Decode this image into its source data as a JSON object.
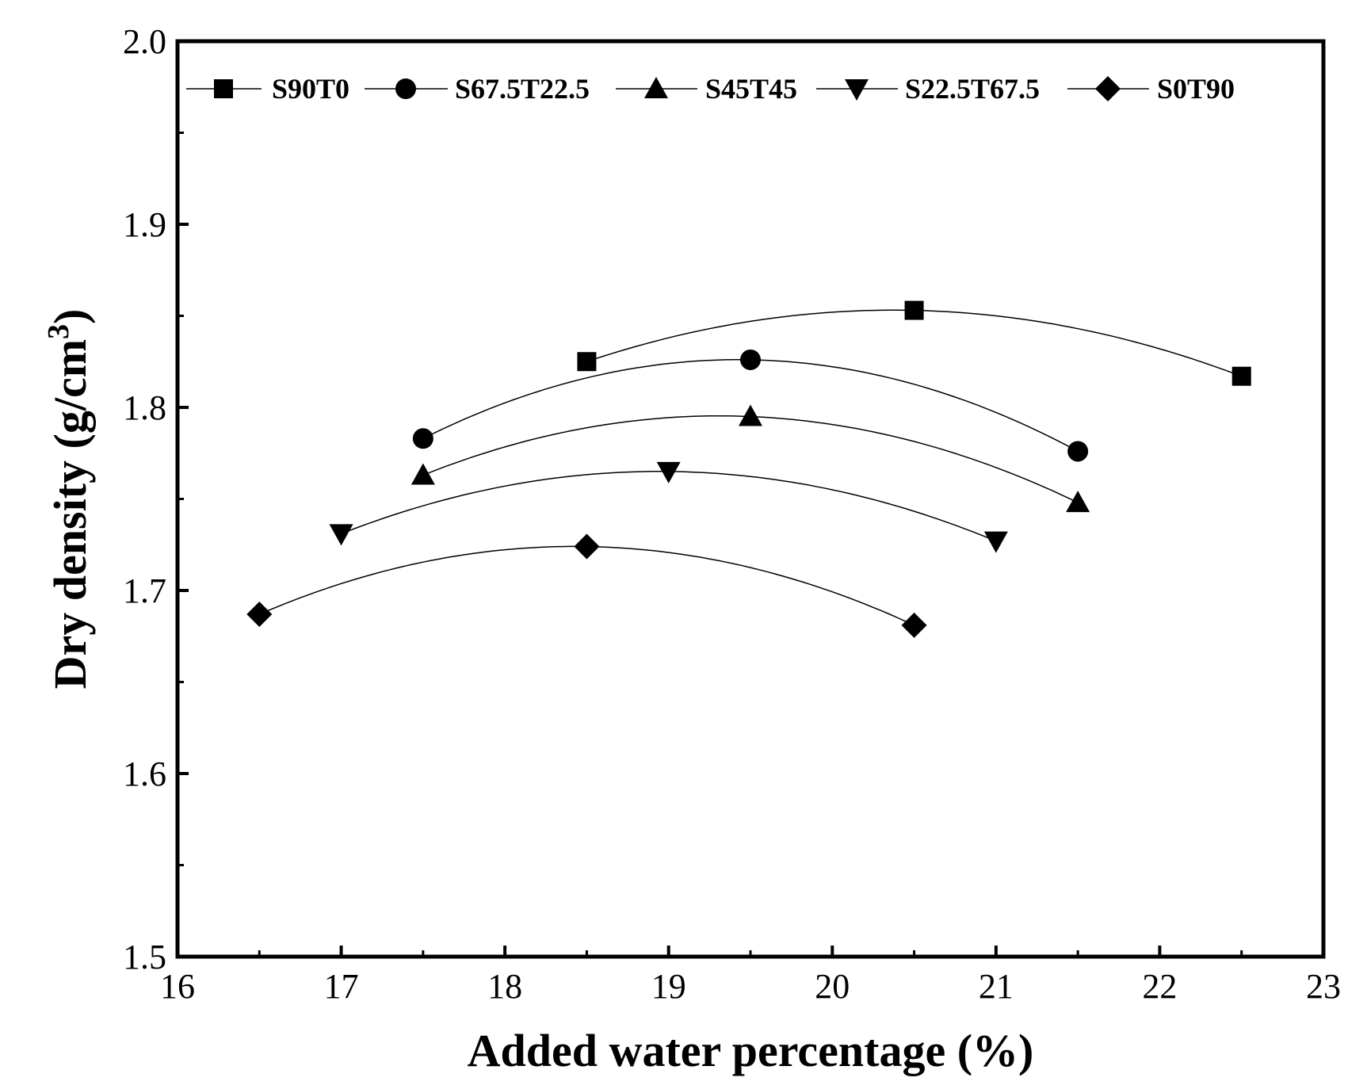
{
  "chart_data": {
    "type": "line",
    "title": "",
    "xlabel": "Added water percentage (%)",
    "ylabel_main": "Dry density (g/cm",
    "ylabel_sup": "3",
    "ylabel_close": ")",
    "xlim": [
      16,
      23
    ],
    "ylim": [
      1.5,
      2.0
    ],
    "xticks": [
      "16",
      "17",
      "18",
      "19",
      "20",
      "21",
      "22",
      "23"
    ],
    "yticks": [
      "1.5",
      "1.6",
      "1.7",
      "1.8",
      "1.9",
      "2.0"
    ],
    "grid": false,
    "legend_position": "top",
    "series": [
      {
        "name": "S90T0",
        "marker": "square",
        "x": [
          18.5,
          20.5,
          22.5
        ],
        "y": [
          1.825,
          1.853,
          1.817
        ]
      },
      {
        "name": "S67.5T22.5",
        "marker": "circle",
        "x": [
          17.5,
          19.5,
          21.5
        ],
        "y": [
          1.783,
          1.826,
          1.776
        ]
      },
      {
        "name": "S45T45",
        "marker": "triangle-up",
        "x": [
          17.5,
          19.5,
          21.5
        ],
        "y": [
          1.763,
          1.795,
          1.748
        ]
      },
      {
        "name": "S22.5T67.5",
        "marker": "triangle-down",
        "x": [
          17.0,
          19.0,
          21.0
        ],
        "y": [
          1.731,
          1.765,
          1.727
        ]
      },
      {
        "name": "S0T90",
        "marker": "diamond",
        "x": [
          16.5,
          18.5,
          20.5
        ],
        "y": [
          1.687,
          1.724,
          1.681
        ]
      }
    ],
    "colors": {
      "line": "#000000",
      "marker": "#000000"
    }
  }
}
